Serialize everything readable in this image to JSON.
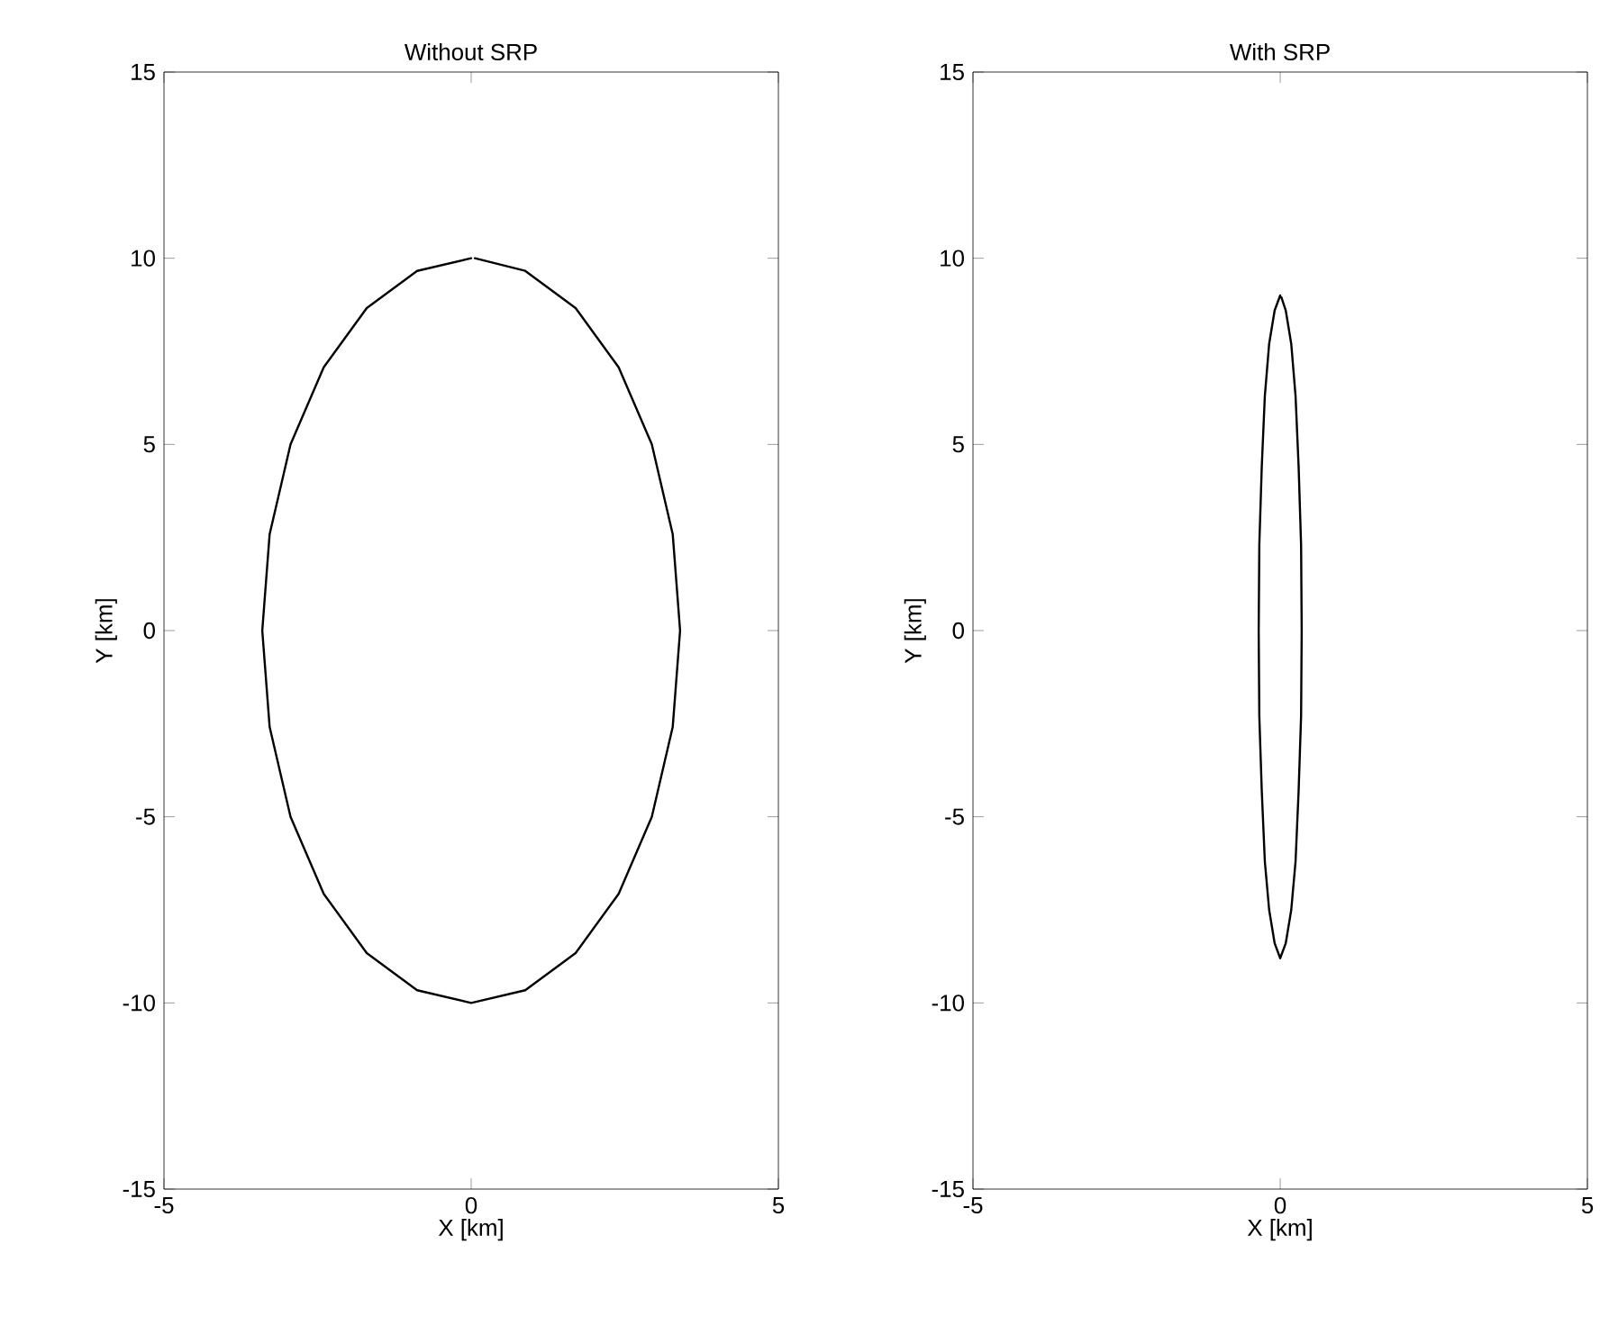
{
  "chart_data": [
    {
      "type": "line",
      "title": "Without SRP",
      "xlabel": "X [km]",
      "ylabel": "Y [km]",
      "xlim": [
        -5,
        5
      ],
      "ylim": [
        -15,
        15
      ],
      "xticks": [
        -5,
        0,
        5
      ],
      "yticks": [
        -15,
        -10,
        -5,
        0,
        5,
        10,
        15
      ],
      "grid": false,
      "series": [
        {
          "color": "#000000",
          "x": [
            0,
            -0.88,
            -1.7,
            -2.4,
            -2.94,
            -3.28,
            -3.4,
            -3.28,
            -2.94,
            -2.4,
            -1.7,
            -0.88,
            0,
            0.88,
            1.7,
            2.4,
            2.94,
            3.28,
            3.4,
            3.28,
            2.94,
            2.4,
            1.7,
            0.88,
            0.06
          ],
          "values": [
            10,
            9.66,
            8.66,
            7.07,
            5.0,
            2.59,
            0,
            -2.59,
            -5.0,
            -7.07,
            -8.66,
            -9.66,
            -10,
            -9.66,
            -8.66,
            -7.07,
            -5.0,
            -2.59,
            0,
            2.59,
            5.0,
            7.07,
            8.66,
            9.66,
            10
          ]
        }
      ]
    },
    {
      "type": "line",
      "title": "With SRP",
      "xlabel": "X [km]",
      "ylabel": "Y [km]",
      "xlim": [
        -5,
        5
      ],
      "ylim": [
        -15,
        15
      ],
      "xticks": [
        -5,
        0,
        5
      ],
      "yticks": [
        -15,
        -10,
        -5,
        0,
        5,
        10,
        15
      ],
      "grid": false,
      "series": [
        {
          "color": "#000000",
          "x": [
            0,
            -0.09,
            -0.18,
            -0.25,
            -0.3,
            -0.34,
            -0.35,
            -0.34,
            -0.3,
            -0.25,
            -0.18,
            -0.09,
            0,
            0.09,
            0.18,
            0.25,
            0.3,
            0.34,
            0.35,
            0.34,
            0.3,
            0.25,
            0.18,
            0.09,
            0.02
          ],
          "values": [
            9,
            8.6,
            7.7,
            6.3,
            4.4,
            2.3,
            0,
            -2.3,
            -4.3,
            -6.2,
            -7.5,
            -8.4,
            -8.8,
            -8.4,
            -7.5,
            -6.2,
            -4.3,
            -2.3,
            0,
            2.3,
            4.4,
            6.3,
            7.7,
            8.6,
            8.95
          ]
        }
      ]
    }
  ]
}
